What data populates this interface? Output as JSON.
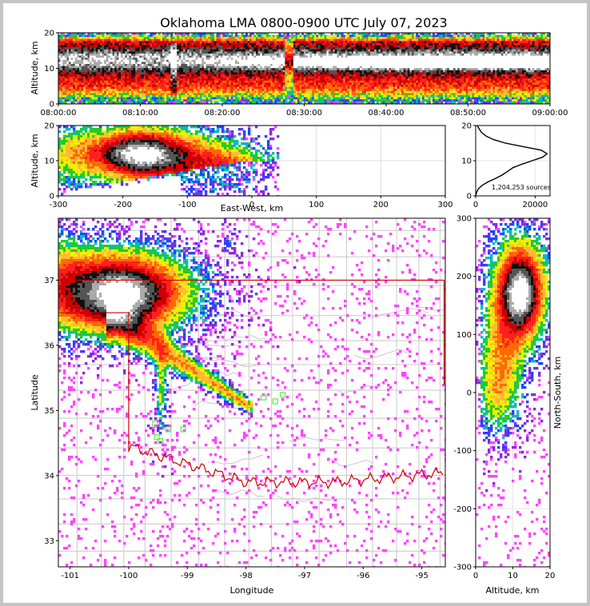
{
  "chart_data": {
    "type": "heatmap",
    "title": "Oklahoma LMA 0800-0900 UTC July 07, 2023",
    "panels": {
      "time_altitude": {
        "ylabel": "Altitude, km",
        "xlim": [
          "08:00:00",
          "09:00:00"
        ],
        "ylim": [
          0,
          20
        ],
        "x_ticks": [
          "08:00:00",
          "08:10:00",
          "08:20:00",
          "08:30:00",
          "08:40:00",
          "08:50:00",
          "09:00:00"
        ],
        "y_ticks": [
          0,
          10,
          20
        ]
      },
      "ew_altitude": {
        "xlabel": "East-West, km",
        "ylabel": "Altitude, km",
        "xlim": [
          -300,
          300
        ],
        "ylim": [
          0,
          20
        ],
        "x_ticks": [
          -300,
          -200,
          -100,
          0,
          100,
          200,
          300
        ],
        "y_ticks": [
          0,
          10,
          20
        ]
      },
      "histogram": {
        "annotation": "1,204,253 sources",
        "xlim": [
          0,
          25000
        ],
        "ylim": [
          0,
          20
        ],
        "x_ticks": [
          0,
          20000
        ],
        "y_ticks": [
          0,
          10,
          20
        ],
        "profile": [
          {
            "alt": 0,
            "count": 0
          },
          {
            "alt": 1,
            "count": 300
          },
          {
            "alt": 2,
            "count": 900
          },
          {
            "alt": 3,
            "count": 2200
          },
          {
            "alt": 4,
            "count": 4200
          },
          {
            "alt": 5,
            "count": 6800
          },
          {
            "alt": 6,
            "count": 9000
          },
          {
            "alt": 7,
            "count": 10800
          },
          {
            "alt": 8,
            "count": 12500
          },
          {
            "alt": 9,
            "count": 15500
          },
          {
            "alt": 10,
            "count": 19000
          },
          {
            "alt": 11,
            "count": 22500
          },
          {
            "alt": 12,
            "count": 24000
          },
          {
            "alt": 13,
            "count": 22000
          },
          {
            "alt": 14,
            "count": 16000
          },
          {
            "alt": 15,
            "count": 10000
          },
          {
            "alt": 16,
            "count": 6000
          },
          {
            "alt": 17,
            "count": 3500
          },
          {
            "alt": 18,
            "count": 2000
          },
          {
            "alt": 19,
            "count": 1200
          },
          {
            "alt": 20,
            "count": 500
          }
        ]
      },
      "plan_view": {
        "xlabel": "Longitude",
        "ylabel": "Latitude",
        "xlim": [
          -101.2,
          -94.6
        ],
        "ylim": [
          32.6,
          37.95
        ],
        "x_ticks": [
          "-101",
          "-100",
          "-99",
          "-98",
          "-97",
          "-96",
          "-95"
        ],
        "y_ticks": [
          "33",
          "34",
          "35",
          "36",
          "37"
        ],
        "stations": [
          {
            "lon": -98.1,
            "lat": 35.24
          },
          {
            "lon": -97.93,
            "lat": 35.01
          },
          {
            "lon": -97.7,
            "lat": 35.2
          },
          {
            "lon": -97.5,
            "lat": 35.14
          },
          {
            "lon": -97.37,
            "lat": 35.24
          },
          {
            "lon": -99.55,
            "lat": 34.8
          },
          {
            "lon": -99.52,
            "lat": 34.59
          },
          {
            "lon": -99.46,
            "lat": 34.53
          },
          {
            "lon": -99.33,
            "lat": 34.71
          },
          {
            "lon": -99.07,
            "lat": 34.71
          }
        ]
      },
      "ns_altitude": {
        "xlabel": "Altitude, km",
        "ylabel": "North-South, km",
        "xlim": [
          0,
          20
        ],
        "ylim": [
          -300,
          300
        ],
        "x_ticks": [
          0,
          10,
          20
        ],
        "y_ticks": [
          -300,
          -200,
          -100,
          0,
          100,
          200,
          300
        ]
      }
    }
  },
  "colors": {
    "border": "#cc0000",
    "county": "#c8c8c8",
    "station": "#55ee44",
    "profile": "#000000"
  }
}
